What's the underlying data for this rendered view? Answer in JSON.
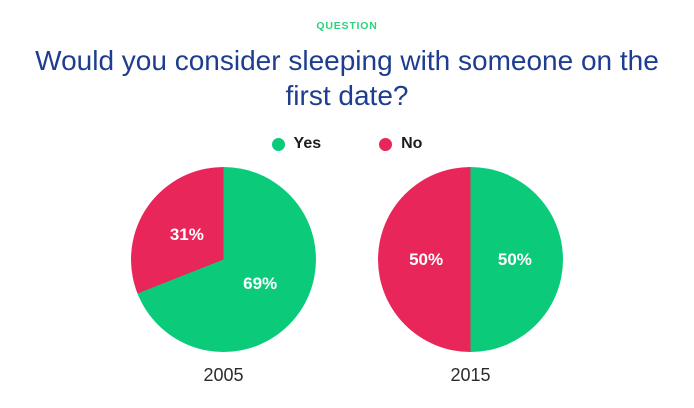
{
  "header": {
    "eyebrow": "QUESTION",
    "title": "Would you consider sleeping with someone on the first date?"
  },
  "chart_data": {
    "type": "pie",
    "title": "Would you consider sleeping with someone on the first date?",
    "eyebrow": "QUESTION",
    "legend_position": "top-center",
    "direction": "clockwise",
    "start_angle_deg": 0,
    "value_suffix": "%",
    "legend": [
      {
        "label": "Yes",
        "color": "#0bcb7b"
      },
      {
        "label": "No",
        "color": "#e8265a"
      }
    ],
    "charts": [
      {
        "category": "2005",
        "slices": [
          {
            "label": "Yes",
            "value": 69,
            "display": "69%",
            "color": "#0bcb7b"
          },
          {
            "label": "No",
            "value": 31,
            "display": "31%",
            "color": "#e8265a"
          }
        ]
      },
      {
        "category": "2015",
        "slices": [
          {
            "label": "Yes",
            "value": 50,
            "display": "50%",
            "color": "#0bcb7b"
          },
          {
            "label": "No",
            "value": 50,
            "display": "50%",
            "color": "#e8265a"
          }
        ]
      }
    ]
  },
  "colors": {
    "background": "#ffffff",
    "eyebrow_green": "#2ed17e",
    "title_blue": "#1e3d90",
    "legend_text": "#1d1d1d",
    "caption_text": "#2b2b2b",
    "slice_label_text": "#ffffff"
  }
}
